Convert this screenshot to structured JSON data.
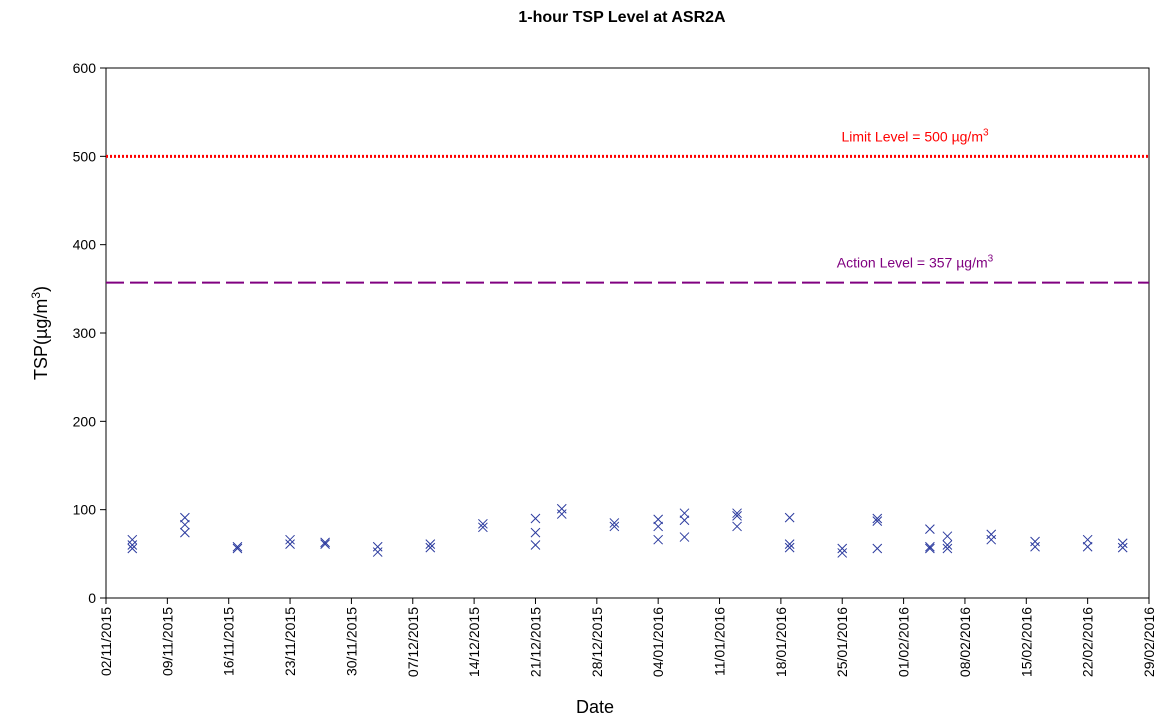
{
  "chart_data": {
    "type": "scatter",
    "title": "1-hour TSP Level at ASR2A",
    "xlabel": "Date",
    "ylabel_main": "TSP(µg/m",
    "ylabel_sup": "3",
    "ylabel_close": ")",
    "ylim": [
      0,
      600
    ],
    "yticks": [
      0,
      100,
      200,
      300,
      400,
      500,
      600
    ],
    "xlim": [
      "02/11/2015",
      "29/02/2016"
    ],
    "xticks": [
      "02/11/2015",
      "09/11/2015",
      "16/11/2015",
      "23/11/2015",
      "30/11/2015",
      "07/12/2015",
      "14/12/2015",
      "21/12/2015",
      "28/12/2015",
      "04/01/2016",
      "11/01/2016",
      "18/01/2016",
      "25/01/2016",
      "01/02/2016",
      "08/02/2016",
      "15/02/2016",
      "22/02/2016",
      "29/02/2016"
    ],
    "grid": false,
    "marker": "x",
    "marker_color": "#2b3a9e",
    "reference_lines": [
      {
        "label_main": "Limit Level = 500 µg/m",
        "label_sup": "3",
        "value": 500,
        "color": "#ff0000",
        "style": "dotted"
      },
      {
        "label_main": "Action Level = 357 µg/m",
        "label_sup": "3",
        "value": 357,
        "color": "#800080",
        "style": "dashed"
      }
    ],
    "points": [
      {
        "x": "05/11/2015",
        "y": 66
      },
      {
        "x": "05/11/2015",
        "y": 60
      },
      {
        "x": "05/11/2015",
        "y": 56
      },
      {
        "x": "11/11/2015",
        "y": 91
      },
      {
        "x": "11/11/2015",
        "y": 83
      },
      {
        "x": "11/11/2015",
        "y": 74
      },
      {
        "x": "17/11/2015",
        "y": 58
      },
      {
        "x": "17/11/2015",
        "y": 56
      },
      {
        "x": "23/11/2015",
        "y": 66
      },
      {
        "x": "23/11/2015",
        "y": 61
      },
      {
        "x": "27/11/2015",
        "y": 63
      },
      {
        "x": "27/11/2015",
        "y": 61
      },
      {
        "x": "03/12/2015",
        "y": 58
      },
      {
        "x": "03/12/2015",
        "y": 52
      },
      {
        "x": "09/12/2015",
        "y": 61
      },
      {
        "x": "09/12/2015",
        "y": 57
      },
      {
        "x": "15/12/2015",
        "y": 84
      },
      {
        "x": "15/12/2015",
        "y": 80
      },
      {
        "x": "21/12/2015",
        "y": 90
      },
      {
        "x": "21/12/2015",
        "y": 74
      },
      {
        "x": "21/12/2015",
        "y": 60
      },
      {
        "x": "24/12/2015",
        "y": 101
      },
      {
        "x": "24/12/2015",
        "y": 95
      },
      {
        "x": "30/12/2015",
        "y": 85
      },
      {
        "x": "30/12/2015",
        "y": 81
      },
      {
        "x": "04/01/2016",
        "y": 89
      },
      {
        "x": "04/01/2016",
        "y": 81
      },
      {
        "x": "04/01/2016",
        "y": 66
      },
      {
        "x": "07/01/2016",
        "y": 96
      },
      {
        "x": "07/01/2016",
        "y": 88
      },
      {
        "x": "07/01/2016",
        "y": 69
      },
      {
        "x": "13/01/2016",
        "y": 96
      },
      {
        "x": "13/01/2016",
        "y": 93
      },
      {
        "x": "13/01/2016",
        "y": 81
      },
      {
        "x": "19/01/2016",
        "y": 91
      },
      {
        "x": "19/01/2016",
        "y": 61
      },
      {
        "x": "19/01/2016",
        "y": 57
      },
      {
        "x": "25/01/2016",
        "y": 56
      },
      {
        "x": "25/01/2016",
        "y": 51
      },
      {
        "x": "29/01/2016",
        "y": 90
      },
      {
        "x": "29/01/2016",
        "y": 87
      },
      {
        "x": "29/01/2016",
        "y": 56
      },
      {
        "x": "04/02/2016",
        "y": 78
      },
      {
        "x": "04/02/2016",
        "y": 58
      },
      {
        "x": "04/02/2016",
        "y": 56
      },
      {
        "x": "06/02/2016",
        "y": 70
      },
      {
        "x": "06/02/2016",
        "y": 60
      },
      {
        "x": "06/02/2016",
        "y": 56
      },
      {
        "x": "11/02/2016",
        "y": 72
      },
      {
        "x": "11/02/2016",
        "y": 66
      },
      {
        "x": "16/02/2016",
        "y": 64
      },
      {
        "x": "16/02/2016",
        "y": 58
      },
      {
        "x": "22/02/2016",
        "y": 66
      },
      {
        "x": "22/02/2016",
        "y": 58
      },
      {
        "x": "26/02/2016",
        "y": 62
      },
      {
        "x": "26/02/2016",
        "y": 57
      }
    ]
  }
}
